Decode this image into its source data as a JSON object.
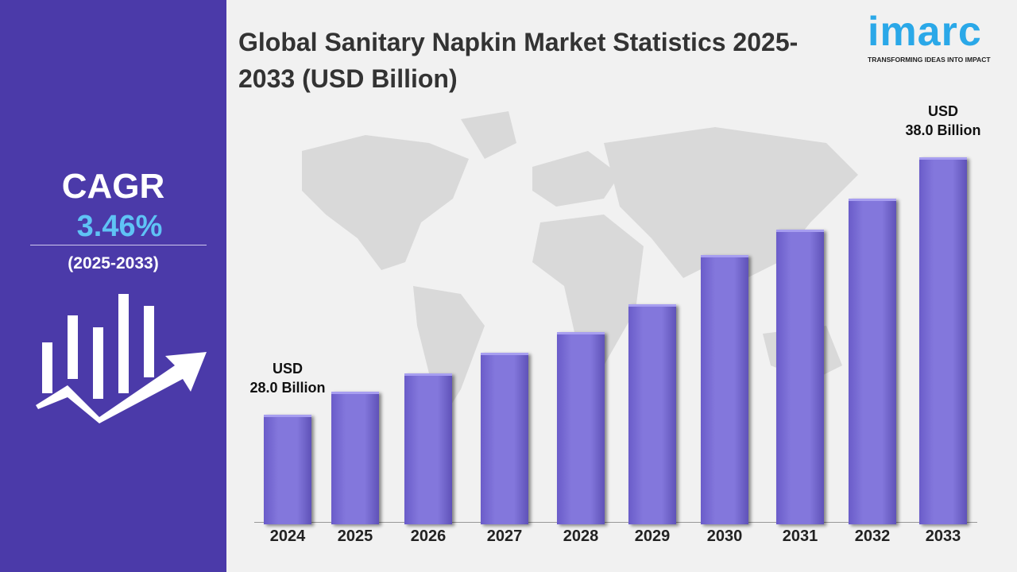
{
  "sidebar": {
    "cagr_label": "CAGR",
    "cagr_value": "3.46%",
    "cagr_period": "(2025-2033)",
    "icon": "growth-chart-arrow-icon"
  },
  "logo": {
    "word": "imarc",
    "tagline": "TRANSFORMING IDEAS INTO IMPACT"
  },
  "colors": {
    "sidebar": "#4b3aa9",
    "bar": "#8377dc",
    "cagr_value": "#5fc3f5",
    "logo": "#2aa8e8"
  },
  "chart_data": {
    "type": "bar",
    "title": "Global Sanitary Napkin Market Statistics 2025-2033 (USD Billion)",
    "categories": [
      "2024",
      "2025",
      "2026",
      "2027",
      "2028",
      "2029",
      "2030",
      "2031",
      "2032",
      "2033"
    ],
    "values": [
      28.0,
      28.9,
      29.6,
      30.4,
      31.2,
      32.3,
      34.2,
      35.2,
      36.4,
      38.0
    ],
    "annotations": [
      {
        "category": "2024",
        "line1": "USD",
        "line2": "28.0 Billion"
      },
      {
        "category": "2033",
        "line1": "USD",
        "line2": "38.0 Billion"
      }
    ],
    "xlabel": "",
    "ylabel": "",
    "grid": false,
    "background": "world-map"
  }
}
